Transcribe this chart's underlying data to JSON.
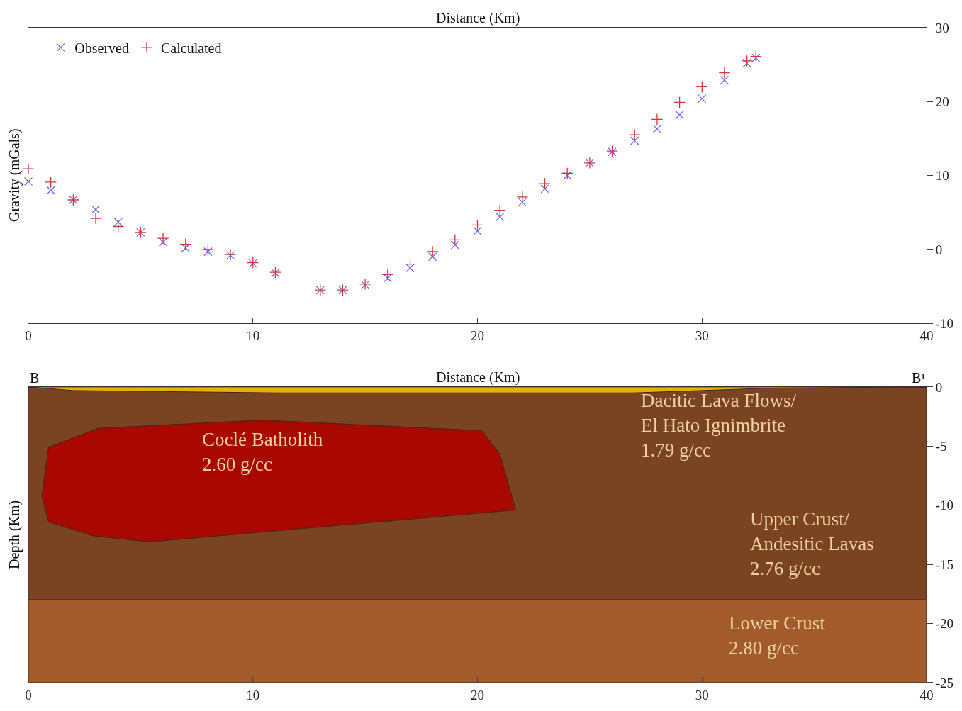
{
  "chart_data": [
    {
      "type": "scatter",
      "xlabel": "Distance (Km)",
      "ylabel": "Gravity (mGals)",
      "xlim": [
        0,
        40
      ],
      "xticks": [
        0,
        10,
        20,
        30,
        40
      ],
      "ylim": [
        -10,
        30
      ],
      "yticks": [
        -10,
        0,
        10,
        20,
        30
      ],
      "legend": "top left",
      "series": [
        {
          "name": "Observed",
          "color": "#6b6bff",
          "marker": "x",
          "x": [
            0,
            1,
            2,
            3,
            4,
            5,
            6,
            7,
            8,
            9,
            10,
            11,
            13,
            14,
            15,
            16,
            17,
            18,
            19,
            20,
            21,
            22,
            23,
            24,
            25,
            26,
            27,
            28,
            29,
            30,
            31,
            32,
            32.4
          ],
          "values": [
            9.2,
            8.0,
            6.7,
            5.4,
            3.7,
            2.3,
            1.0,
            0.2,
            -0.3,
            -0.8,
            -1.9,
            -3.2,
            -5.5,
            -5.5,
            -4.8,
            -3.9,
            -2.5,
            -1.0,
            0.6,
            2.5,
            4.4,
            6.4,
            8.2,
            10.0,
            11.7,
            13.2,
            14.7,
            16.3,
            18.2,
            20.4,
            22.9,
            25.2,
            25.9
          ]
        },
        {
          "name": "Calculated",
          "color": "#d9343a",
          "marker": "cross",
          "x": [
            0,
            1,
            2,
            3,
            4,
            5,
            6,
            7,
            8,
            9,
            10,
            11,
            13,
            14,
            15,
            16,
            17,
            18,
            19,
            20,
            21,
            22,
            23,
            24,
            25,
            26,
            27,
            28,
            29,
            30,
            31,
            32,
            32.4
          ],
          "values": [
            10.9,
            9.1,
            6.7,
            4.2,
            3.1,
            2.3,
            1.5,
            0.7,
            0.0,
            -0.7,
            -1.8,
            -3.1,
            -5.5,
            -5.5,
            -4.7,
            -3.4,
            -2.0,
            -0.3,
            1.3,
            3.3,
            5.3,
            7.1,
            8.9,
            10.3,
            11.7,
            13.3,
            15.5,
            17.6,
            19.9,
            22.0,
            23.9,
            25.5,
            26.1
          ]
        }
      ]
    },
    {
      "type": "area",
      "xlabel": "Distance (Km)",
      "ylabel": "Depth (Km)",
      "xlim": [
        0,
        40
      ],
      "xticks": [
        0,
        10,
        20,
        30,
        40
      ],
      "ylim": [
        -25,
        0
      ],
      "yticks": [
        -25,
        -20,
        -15,
        -10,
        -5,
        0
      ],
      "legend": false,
      "series": [
        {
          "color": "#7a4422",
          "x": [
            0,
            40,
            40,
            0,
            0
          ],
          "values": [
            0,
            0,
            -18,
            -18,
            0
          ]
        },
        {
          "color": "#a15b2d",
          "x": [
            0,
            40,
            40,
            0,
            0
          ],
          "values": [
            -18,
            -18,
            -25,
            -25,
            -18
          ]
        },
        {
          "color": "#e8b000",
          "x": [
            0,
            40,
            33,
            27,
            11,
            2,
            0
          ],
          "values": [
            0,
            0,
            -0.1,
            -0.5,
            -0.5,
            -0.3,
            0
          ]
        },
        {
          "color": "#a80800",
          "x": [
            0.9,
            3.1,
            10.4,
            20.2,
            21.0,
            21.7,
            5.4,
            2.9,
            0.9,
            0.6,
            0.9
          ],
          "values": [
            -5.1,
            -3.5,
            -2.8,
            -3.7,
            -5.7,
            -10.4,
            -13.1,
            -12.6,
            -11.4,
            -9.2,
            -5.1
          ]
        }
      ],
      "annotations": [
        {
          "text": "B",
          "x": 0,
          "y": 0
        },
        {
          "text": "B¹",
          "x": 40,
          "y": 0
        },
        "Coclé Batholith\n2.60 g/cc",
        "Dacitic Lava Flows/\nEl Hato Ignimbrite\n1.79 g/cc",
        "Upper Crust/\nAndesitic Lavas\n2.76 g/cc",
        "Lower Crust\n2.80 g/cc"
      ]
    }
  ]
}
